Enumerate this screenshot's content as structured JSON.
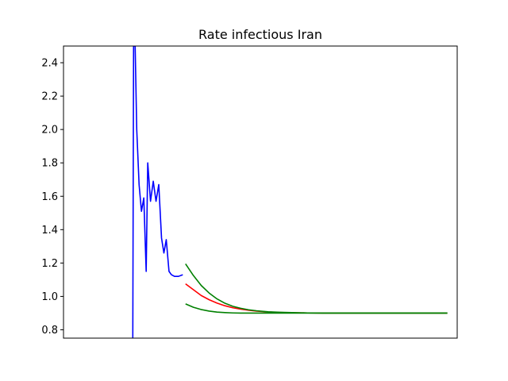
{
  "chart_data": {
    "type": "line",
    "title": "Rate infectious Iran",
    "xlabel": "",
    "ylabel": "",
    "x_ticks_visible": false,
    "xlim": [
      0,
      100
    ],
    "ylim": [
      0.75,
      2.5
    ],
    "yticks": [
      0.8,
      1.0,
      1.2,
      1.4,
      1.6,
      1.8,
      2.0,
      2.2,
      2.4
    ],
    "ytick_labels": [
      "0.8",
      "1.0",
      "1.2",
      "1.4",
      "1.6",
      "1.8",
      "2.0",
      "2.2",
      "2.4"
    ],
    "grid": false,
    "legend": "none",
    "series": [
      {
        "color": "#0000ff",
        "x": [
          17.6,
          17.8,
          18.2,
          18.6,
          19.2,
          19.8,
          20.4,
          21.0,
          21.4,
          22.1,
          22.8,
          23.5,
          24.2,
          24.9,
          25.5,
          26.1,
          26.8,
          27.4,
          28.2,
          29.2,
          30.3
        ],
        "y": [
          0.75,
          2.5,
          2.5,
          2.0,
          1.67,
          1.51,
          1.59,
          1.15,
          1.8,
          1.57,
          1.69,
          1.57,
          1.67,
          1.35,
          1.26,
          1.34,
          1.15,
          1.13,
          1.12,
          1.12,
          1.13
        ]
      },
      {
        "color": "#ff0000",
        "x": [
          31,
          33,
          35,
          37,
          39,
          41,
          43,
          45,
          47,
          49,
          52,
          55,
          58,
          62,
          66,
          70,
          75,
          80,
          85,
          90,
          95,
          97.5
        ],
        "y": [
          1.075,
          1.04,
          1.005,
          0.98,
          0.96,
          0.944,
          0.932,
          0.924,
          0.917,
          0.912,
          0.907,
          0.904,
          0.902,
          0.901,
          0.9,
          0.9,
          0.9,
          0.9,
          0.9,
          0.9,
          0.9,
          0.9
        ]
      },
      {
        "color": "#008000",
        "x": [
          31,
          33,
          35,
          37,
          39,
          41,
          43,
          45,
          47,
          49,
          52,
          55,
          58,
          62,
          66,
          70,
          75,
          80,
          85,
          90,
          95,
          97.5
        ],
        "y": [
          1.195,
          1.125,
          1.065,
          1.02,
          0.985,
          0.959,
          0.941,
          0.929,
          0.92,
          0.914,
          0.908,
          0.905,
          0.903,
          0.901,
          0.9,
          0.9,
          0.9,
          0.9,
          0.9,
          0.9,
          0.9,
          0.9
        ]
      },
      {
        "color": "#008000",
        "x": [
          31,
          33,
          35,
          37,
          39,
          41,
          43,
          45,
          47,
          49,
          52,
          55,
          58,
          62,
          66,
          70,
          75,
          80,
          85,
          90,
          95,
          97.5
        ],
        "y": [
          0.955,
          0.935,
          0.921,
          0.912,
          0.906,
          0.903,
          0.901,
          0.9,
          0.9,
          0.9,
          0.9,
          0.9,
          0.9,
          0.9,
          0.9,
          0.9,
          0.9,
          0.9,
          0.9,
          0.9,
          0.9,
          0.9
        ]
      }
    ]
  }
}
